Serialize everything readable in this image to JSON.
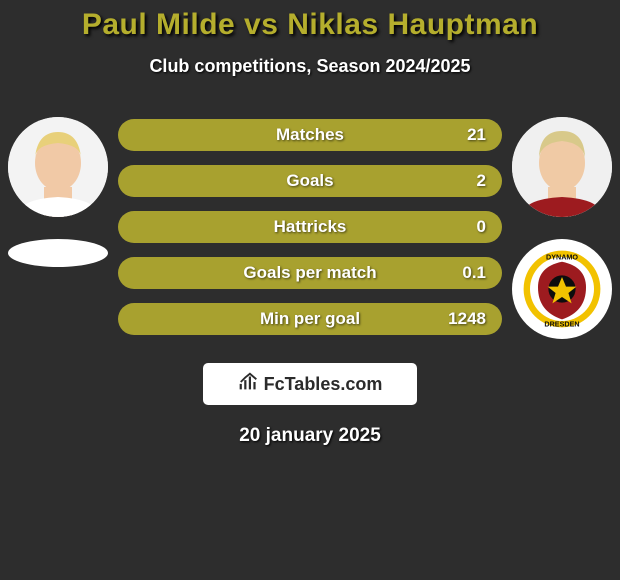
{
  "title_color": "#b5ae2d",
  "title": "Paul Milde vs Niklas Hauptman",
  "subtitle": "Club competitions, Season 2024/2025",
  "date": "20 january 2025",
  "logo_text": "FcTables.com",
  "background_color": "#2d2d2d",
  "bar": {
    "base_color": "#a8a12f",
    "fill_color": "#b7b23a",
    "height": 32,
    "radius": 16,
    "label_fontsize": 17,
    "text_color": "#ffffff"
  },
  "avatar_diameter": 100,
  "stats": [
    {
      "label": "Matches",
      "left_pct": 0,
      "right_value": "21"
    },
    {
      "label": "Goals",
      "left_pct": 0,
      "right_value": "2"
    },
    {
      "label": "Hattricks",
      "left_pct": 0,
      "right_value": "0"
    },
    {
      "label": "Goals per match",
      "left_pct": 0,
      "right_value": "0.1"
    },
    {
      "label": "Min per goal",
      "left_pct": 0,
      "right_value": "1248"
    }
  ],
  "player_left": {
    "name": "Paul Milde",
    "hair": "#e8d07a",
    "skin": "#f1c9a6"
  },
  "player_right": {
    "name": "Niklas Hauptman",
    "hair": "#d8c98a",
    "skin": "#f0caa5"
  },
  "team_right_crest": {
    "text_top": "DYNAMO",
    "text_bottom": "DRESDEN",
    "ring_color": "#f2c200",
    "red": "#9d1b1f",
    "black": "#0d0d0d"
  }
}
